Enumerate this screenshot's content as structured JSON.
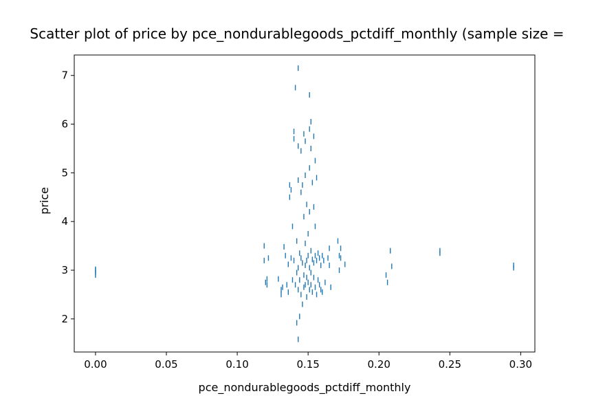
{
  "chart_data": {
    "type": "scatter",
    "title": "Scatter plot of price by pce_nondurablegoods_pctdiff_monthly (sample size = ",
    "xlabel": "pce_nondurablegoods_pctdiff_monthly",
    "ylabel": "price",
    "xlim": [
      -0.015,
      0.31
    ],
    "ylim": [
      1.32,
      7.42
    ],
    "xticks": [
      0.0,
      0.05,
      0.1,
      0.15,
      0.2,
      0.25,
      0.3
    ],
    "xtick_labels": [
      "0.00",
      "0.05",
      "0.10",
      "0.15",
      "0.20",
      "0.25",
      "0.30"
    ],
    "yticks": [
      2,
      3,
      4,
      5,
      6,
      7
    ],
    "ytick_labels": [
      "2",
      "3",
      "4",
      "5",
      "6",
      "7"
    ],
    "grid": false,
    "color": "#1f77b4",
    "marker": "vertical-line",
    "points": [
      [
        0.0,
        3.0
      ],
      [
        0.0,
        2.9
      ],
      [
        0.0,
        2.95
      ],
      [
        0.0,
        3.02
      ],
      [
        0.119,
        3.5
      ],
      [
        0.119,
        3.2
      ],
      [
        0.12,
        2.75
      ],
      [
        0.121,
        2.82
      ],
      [
        0.121,
        2.7
      ],
      [
        0.122,
        3.25
      ],
      [
        0.129,
        2.82
      ],
      [
        0.131,
        2.6
      ],
      [
        0.131,
        2.5
      ],
      [
        0.132,
        2.65
      ],
      [
        0.133,
        3.48
      ],
      [
        0.134,
        3.3
      ],
      [
        0.135,
        2.7
      ],
      [
        0.136,
        2.55
      ],
      [
        0.136,
        3.12
      ],
      [
        0.137,
        4.75
      ],
      [
        0.137,
        4.5
      ],
      [
        0.138,
        4.65
      ],
      [
        0.138,
        3.25
      ],
      [
        0.139,
        2.8
      ],
      [
        0.139,
        3.9
      ],
      [
        0.14,
        5.85
      ],
      [
        0.14,
        5.7
      ],
      [
        0.14,
        3.2
      ],
      [
        0.141,
        6.75
      ],
      [
        0.141,
        2.7
      ],
      [
        0.142,
        3.6
      ],
      [
        0.142,
        2.95
      ],
      [
        0.142,
        1.92
      ],
      [
        0.143,
        7.15
      ],
      [
        0.143,
        5.55
      ],
      [
        0.143,
        4.85
      ],
      [
        0.143,
        3.05
      ],
      [
        0.143,
        2.6
      ],
      [
        0.143,
        1.58
      ],
      [
        0.144,
        3.35
      ],
      [
        0.144,
        2.8
      ],
      [
        0.144,
        2.05
      ],
      [
        0.145,
        5.45
      ],
      [
        0.145,
        4.6
      ],
      [
        0.145,
        3.25
      ],
      [
        0.145,
        2.5
      ],
      [
        0.146,
        4.75
      ],
      [
        0.146,
        3.15
      ],
      [
        0.146,
        2.3
      ],
      [
        0.147,
        5.8
      ],
      [
        0.147,
        4.1
      ],
      [
        0.147,
        2.9
      ],
      [
        0.147,
        2.65
      ],
      [
        0.148,
        5.65
      ],
      [
        0.148,
        4.95
      ],
      [
        0.148,
        3.55
      ],
      [
        0.148,
        3.1
      ],
      [
        0.148,
        2.7
      ],
      [
        0.149,
        4.35
      ],
      [
        0.149,
        3.2
      ],
      [
        0.149,
        2.85
      ],
      [
        0.149,
        2.45
      ],
      [
        0.15,
        3.75
      ],
      [
        0.15,
        3.3
      ],
      [
        0.15,
        2.75
      ],
      [
        0.151,
        6.6
      ],
      [
        0.151,
        5.9
      ],
      [
        0.151,
        5.1
      ],
      [
        0.151,
        4.2
      ],
      [
        0.151,
        3.05
      ],
      [
        0.151,
        2.6
      ],
      [
        0.152,
        6.05
      ],
      [
        0.152,
        5.5
      ],
      [
        0.152,
        3.4
      ],
      [
        0.152,
        2.95
      ],
      [
        0.152,
        2.7
      ],
      [
        0.153,
        4.8
      ],
      [
        0.153,
        3.22
      ],
      [
        0.153,
        2.55
      ],
      [
        0.154,
        5.75
      ],
      [
        0.154,
        4.3
      ],
      [
        0.154,
        3.15
      ],
      [
        0.154,
        2.85
      ],
      [
        0.155,
        5.25
      ],
      [
        0.155,
        3.9
      ],
      [
        0.155,
        3.3
      ],
      [
        0.155,
        2.65
      ],
      [
        0.156,
        4.9
      ],
      [
        0.156,
        3.2
      ],
      [
        0.156,
        2.5
      ],
      [
        0.157,
        3.35
      ],
      [
        0.157,
        2.8
      ],
      [
        0.158,
        3.25
      ],
      [
        0.158,
        2.7
      ],
      [
        0.159,
        3.1
      ],
      [
        0.159,
        2.6
      ],
      [
        0.16,
        3.3
      ],
      [
        0.16,
        2.55
      ],
      [
        0.161,
        3.2
      ],
      [
        0.162,
        2.75
      ],
      [
        0.164,
        3.25
      ],
      [
        0.165,
        3.45
      ],
      [
        0.165,
        3.1
      ],
      [
        0.166,
        2.65
      ],
      [
        0.171,
        3.6
      ],
      [
        0.172,
        3.3
      ],
      [
        0.172,
        3.0
      ],
      [
        0.173,
        3.45
      ],
      [
        0.173,
        3.25
      ],
      [
        0.176,
        3.12
      ],
      [
        0.205,
        2.9
      ],
      [
        0.206,
        2.75
      ],
      [
        0.208,
        3.4
      ],
      [
        0.209,
        3.08
      ],
      [
        0.243,
        3.4
      ],
      [
        0.243,
        3.35
      ],
      [
        0.295,
        3.1
      ],
      [
        0.295,
        3.05
      ]
    ]
  }
}
